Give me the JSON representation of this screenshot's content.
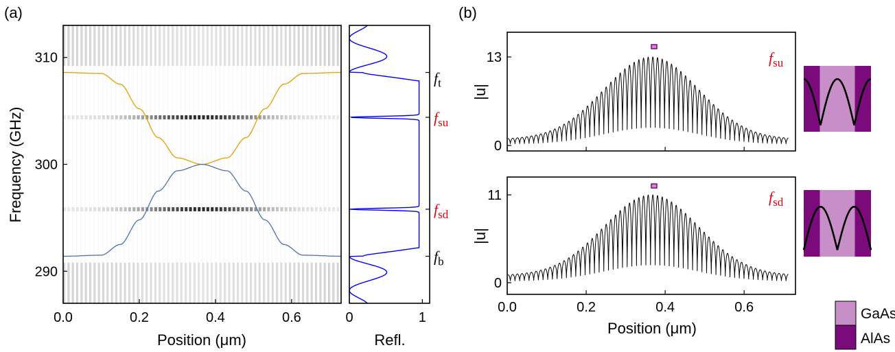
{
  "panel_a": {
    "label": "(a)",
    "xlabel": "Position (μm)",
    "ylabel": "Frequency (GHz)",
    "refl_xlabel": "Refl.",
    "x_ticks": [
      "0.0",
      "0.2",
      "0.4",
      "0.6"
    ],
    "y_ticks": [
      "290",
      "300",
      "310"
    ],
    "refl_ticks": [
      "0",
      "1"
    ],
    "freq_labels": [
      {
        "main": "f",
        "sub": "t",
        "color": "#000000"
      },
      {
        "main": "f",
        "sub": "su",
        "color": "#e8000b"
      },
      {
        "main": "f",
        "sub": "sd",
        "color": "#e8000b"
      },
      {
        "main": "f",
        "sub": "b",
        "color": "#000000"
      }
    ]
  },
  "panel_b": {
    "label": "(b)",
    "xlabel": "Position (μm)",
    "ylabel": "|u|",
    "x_ticks": [
      "0.0",
      "0.2",
      "0.4",
      "0.6"
    ],
    "top_y_ticks": [
      "0",
      "13"
    ],
    "bottom_y_ticks": [
      "0",
      "11"
    ],
    "top_mode_label": {
      "main": "f",
      "sub": "su"
    },
    "bottom_mode_label": {
      "main": "f",
      "sub": "sd"
    },
    "legend": [
      {
        "label": "GaAs",
        "color": "#c88ec8"
      },
      {
        "label": "AlAs",
        "color": "#7b0a7b"
      }
    ]
  },
  "chart_data": [
    {
      "type": "heatmap",
      "title": "",
      "xlabel": "Position (μm)",
      "ylabel": "Frequency (GHz)",
      "xlim": [
        0.0,
        0.73
      ],
      "ylim": [
        287,
        313
      ],
      "series": [
        {
          "name": "",
          "color": "#e69f00",
          "x": [
            0.0,
            0.1,
            0.15,
            0.2,
            0.25,
            0.3,
            0.365,
            0.43,
            0.48,
            0.53,
            0.58,
            0.63,
            0.73
          ],
          "y": [
            308.6,
            308.5,
            307.5,
            305.2,
            302.5,
            300.6,
            300.0,
            300.6,
            302.5,
            305.2,
            307.5,
            308.5,
            308.6
          ]
        },
        {
          "name": "",
          "color": "#4c72b0",
          "x": [
            0.0,
            0.1,
            0.15,
            0.2,
            0.25,
            0.3,
            0.365,
            0.43,
            0.48,
            0.53,
            0.58,
            0.63,
            0.73
          ],
          "y": [
            291.4,
            291.5,
            292.5,
            294.8,
            297.5,
            299.4,
            300.0,
            299.4,
            297.5,
            294.8,
            292.5,
            291.5,
            291.4
          ]
        }
      ],
      "bright_lines_ghz": [
        304.4,
        295.8
      ],
      "stopband_edges_ghz": [
        310.2,
        289.8
      ]
    },
    {
      "type": "line",
      "title": "",
      "xlabel": "Refl.",
      "ylabel": "",
      "xlim": [
        0,
        1.1
      ],
      "ylim": [
        287,
        313
      ],
      "series": [
        {
          "name": "",
          "color": "#0000ff",
          "note_frequencies_ghz": {
            "f_t": 308.6,
            "f_su": 304.4,
            "f_sd": 295.8,
            "f_b": 291.4
          }
        }
      ]
    },
    {
      "type": "line",
      "title": "",
      "xlabel": "Position (μm)",
      "ylabel": "|u|",
      "xlim": [
        0.0,
        0.73
      ],
      "ylim": [
        0,
        13
      ],
      "series": [
        {
          "name": "",
          "color": "#000000",
          "mode": "f_su",
          "envelope_center_um": 0.365,
          "envelope_peak": 13,
          "oscillation_min": 2.6,
          "num_periods": 60
        }
      ]
    },
    {
      "type": "line",
      "title": "",
      "xlabel": "Position (μm)",
      "ylabel": "|u|",
      "xlim": [
        0.0,
        0.73
      ],
      "ylim": [
        0,
        11
      ],
      "series": [
        {
          "name": "",
          "color": "#000000",
          "mode": "f_sd",
          "envelope_center_um": 0.365,
          "envelope_peak": 11,
          "oscillation_min": 2.2,
          "num_periods": 60
        }
      ]
    }
  ]
}
